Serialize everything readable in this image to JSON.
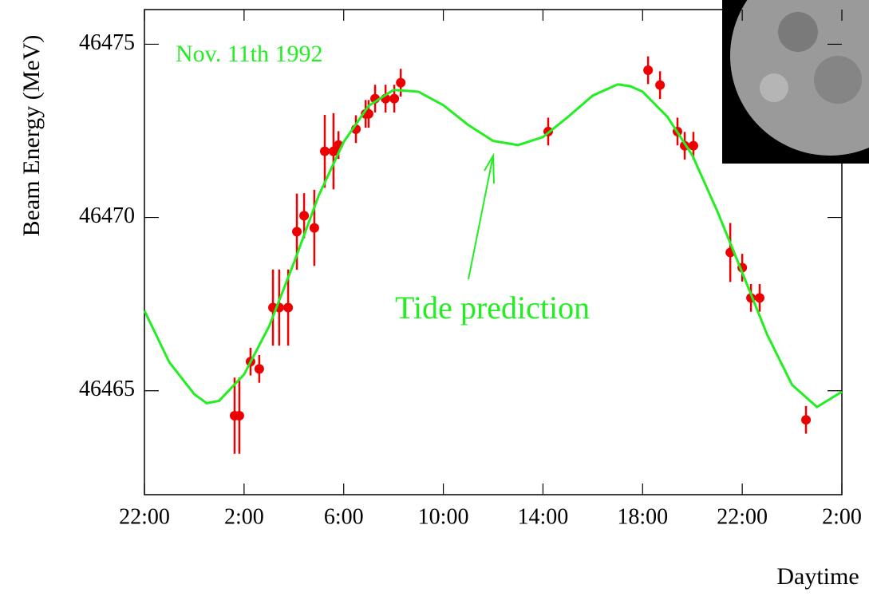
{
  "chart_data": {
    "type": "scatter",
    "y_label": "Beam Energy (MeV)",
    "x_label": "Daytime",
    "xlim": [
      -2,
      26
    ],
    "xticks": [
      {
        "value": -2,
        "label": "22:00"
      },
      {
        "value": 2,
        "label": "2:00"
      },
      {
        "value": 6,
        "label": "6:00"
      },
      {
        "value": 10,
        "label": "10:00"
      },
      {
        "value": 14,
        "label": "14:00"
      },
      {
        "value": 18,
        "label": "18:00"
      },
      {
        "value": 22,
        "label": "22:00"
      },
      {
        "value": 26,
        "label": "2:00"
      }
    ],
    "ylim": [
      46462,
      46476
    ],
    "yticks": [
      46465,
      46470,
      46475
    ],
    "annotations": [
      {
        "text": "Nov. 11th 1992"
      },
      {
        "text": "Tide prediction"
      }
    ],
    "series": [
      {
        "type": "scatter",
        "color": "#ee0000",
        "x": [
          1.62,
          1.81,
          2.26,
          2.61,
          3.16,
          3.41,
          3.77,
          4.12,
          4.41,
          4.82,
          5.24,
          5.59,
          5.79,
          6.49,
          6.88,
          7.0,
          7.26,
          7.68,
          8.03,
          8.29,
          14.21,
          18.22,
          18.7,
          19.4,
          19.69,
          20.04,
          21.52,
          22.0,
          22.35,
          22.7,
          24.56
        ],
        "values": [
          46464.28,
          46464.28,
          46465.84,
          46465.63,
          46467.4,
          46467.4,
          46467.4,
          46469.59,
          46470.05,
          46469.7,
          46471.91,
          46471.91,
          46472.09,
          46472.55,
          46472.99,
          46472.99,
          46473.43,
          46473.43,
          46473.43,
          46473.89,
          46472.48,
          46474.25,
          46473.82,
          46472.48,
          46472.07,
          46472.07,
          46468.99,
          46468.55,
          46467.68,
          46467.68,
          46464.16
        ],
        "errors": [
          1.1,
          1.1,
          0.4,
          0.4,
          1.1,
          1.1,
          1.1,
          1.1,
          0.65,
          1.1,
          1.05,
          1.1,
          0.4,
          0.4,
          0.4,
          0.4,
          0.4,
          0.4,
          0.4,
          0.4,
          0.4,
          0.4,
          0.4,
          0.4,
          0.4,
          0.4,
          0.85,
          0.4,
          0.4,
          0.4,
          0.4
        ]
      },
      {
        "type": "line",
        "color": "#22ee22",
        "x": [
          -2,
          -1,
          0,
          0.5,
          1,
          2,
          3,
          4,
          5,
          6,
          7,
          8,
          9,
          10,
          11,
          12,
          13,
          14,
          15,
          16,
          17,
          17.5,
          18,
          19,
          20,
          21,
          22,
          23,
          24,
          25,
          26
        ],
        "values": [
          46467.31,
          46465.82,
          46464.9,
          46464.64,
          46464.71,
          46465.47,
          46466.85,
          46468.69,
          46470.64,
          46472.18,
          46473.22,
          46473.68,
          46473.63,
          46473.24,
          46472.67,
          46472.21,
          46472.09,
          46472.32,
          46472.9,
          46473.52,
          46473.84,
          46473.79,
          46473.63,
          46472.9,
          46471.79,
          46470.18,
          46468.41,
          46466.62,
          46465.17,
          46464.53,
          46464.97
        ]
      }
    ]
  }
}
